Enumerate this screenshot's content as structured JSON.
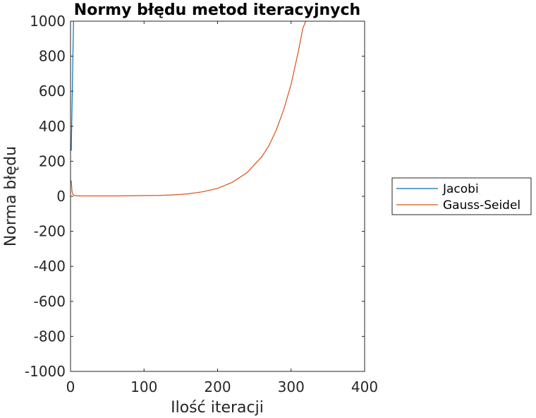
{
  "chart_data": {
    "type": "line",
    "title": "Normy błędu metod iteracyjnych",
    "xlabel": "Ilość iteracji",
    "ylabel": "Norma błędu",
    "xlim": [
      0,
      400
    ],
    "ylim": [
      -1000,
      1000
    ],
    "xticks": [
      "0",
      "100",
      "200",
      "300",
      "400"
    ],
    "yticks": [
      "-1000",
      "-800",
      "-600",
      "-400",
      "-200",
      "0",
      "200",
      "400",
      "600",
      "800",
      "1000"
    ],
    "grid": false,
    "legend_position": "outside-right",
    "series": [
      {
        "name": "Jacobi",
        "color": "#0072BD",
        "x": [
          1,
          2,
          3,
          4,
          5
        ],
        "y": [
          260,
          500,
          750,
          980,
          1200
        ]
      },
      {
        "name": "Gauss-Seidel",
        "color": "#D95319",
        "x": [
          1,
          2,
          3,
          5,
          10,
          20,
          40,
          60,
          80,
          100,
          120,
          140,
          160,
          180,
          200,
          220,
          240,
          260,
          270,
          280,
          290,
          300,
          310,
          316,
          320,
          322
        ],
        "y": [
          90,
          30,
          12,
          5,
          2,
          2,
          2,
          2,
          3,
          4,
          5,
          8,
          14,
          26,
          45,
          80,
          135,
          225,
          290,
          380,
          495,
          640,
          830,
          960,
          1000,
          1010
        ]
      }
    ]
  }
}
